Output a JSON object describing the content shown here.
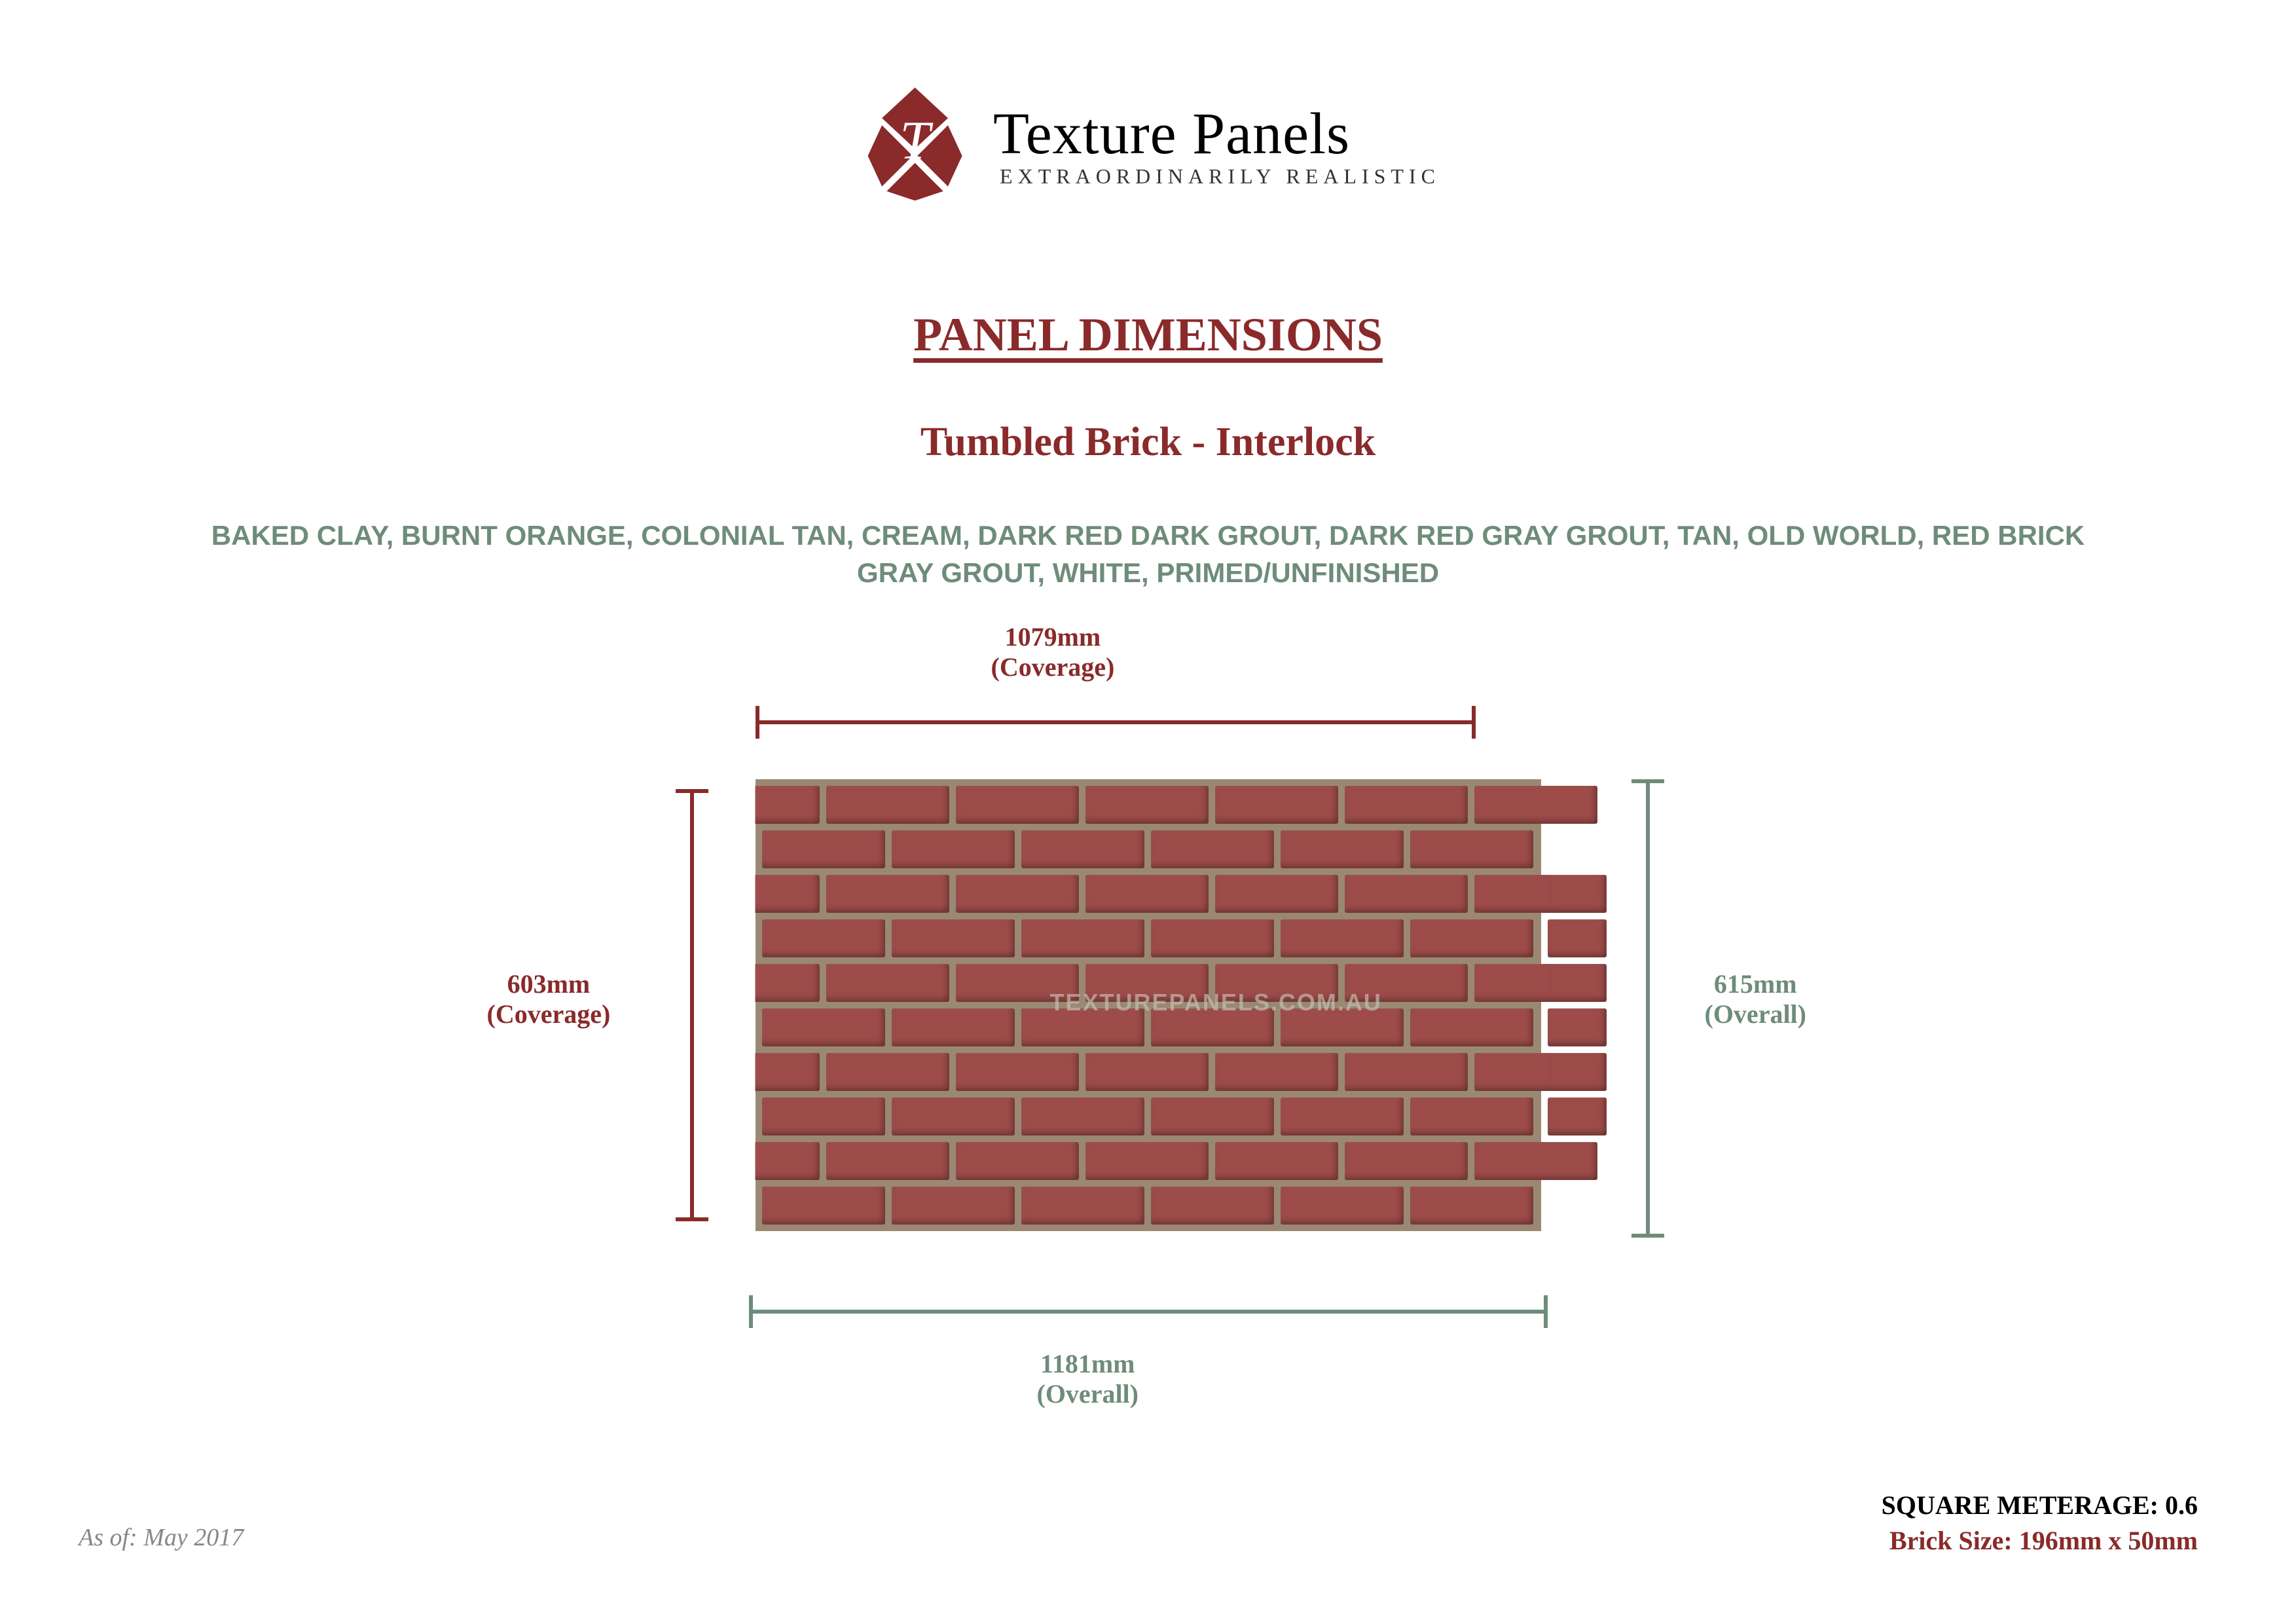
{
  "brand": {
    "name": "Texture Panels",
    "tagline": "EXTRAORDINARILY REALISTIC",
    "logo_color": "#8a2a2a"
  },
  "headings": {
    "h1": "PANEL DIMENSIONS",
    "h2": "Tumbled Brick - Interlock"
  },
  "color_options": "BAKED CLAY, BURNT ORANGE, COLONIAL TAN, CREAM, DARK RED DARK GROUT, DARK RED GRAY GROUT, TAN, OLD WORLD, RED BRICK GRAY GROUT, WHITE, PRIMED/UNFINISHED",
  "dimensions": {
    "coverage_width": {
      "value": "1079mm",
      "sub": "(Coverage)",
      "color": "#8a2a2a"
    },
    "coverage_height": {
      "value": "603mm",
      "sub": "(Coverage)",
      "color": "#8a2a2a"
    },
    "overall_width": {
      "value": "1181mm",
      "sub": "(Overall)",
      "color": "#6e8c7a"
    },
    "overall_height": {
      "value": "615mm",
      "sub": "(Overall)",
      "color": "#6e8c7a"
    }
  },
  "panel_graphic": {
    "brick_color": "#9e4c4a",
    "grout_color": "#9a8873",
    "watermark": "TEXTUREPANELS.COM.AU",
    "rows": 10,
    "bricks_per_row": 6,
    "interlock_tab_rows": [
      2,
      3,
      4,
      5,
      6,
      7
    ]
  },
  "footer": {
    "date": "As of: May 2017",
    "square_meterage_label": "SQUARE METERAGE:",
    "square_meterage_value": "0.6",
    "brick_size_label": "Brick Size:",
    "brick_size_value": "196mm x 50mm",
    "brick_size_color": "#8a2a2a"
  },
  "palette": {
    "maroon": "#8a2a2a",
    "sage": "#6e8c7a",
    "background": "#ffffff"
  }
}
